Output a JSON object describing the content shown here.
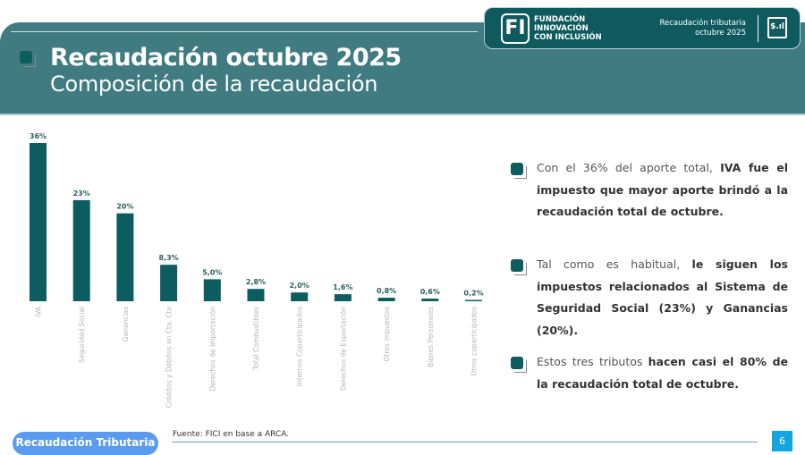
{
  "header": {
    "title": "Recaudación octubre 2025",
    "subtitle": "Composición de la recaudación"
  },
  "logo": {
    "mark": "FI",
    "org_lines": [
      "FUNDACIÓN",
      "INNOVACIÓN",
      "CON INCLUSIÓN"
    ],
    "report_lines": [
      "Recaudación tributaria",
      "octubre 2025"
    ],
    "icon": "presentation-chart-icon",
    "icon_text": "$.ıl"
  },
  "colors": {
    "header": "#3f7b80",
    "bar": "#0d5c5f",
    "footer_pill": "#5b9bef",
    "page_number": "#12a6e0"
  },
  "chart_data": {
    "type": "bar",
    "title": "",
    "xlabel": "",
    "ylabel": "",
    "ylim": [
      0,
      36
    ],
    "grid": false,
    "categories": [
      "IVA",
      "Seguridad Social",
      "Ganancias",
      "Créditos y Débitos en Cta. Cte",
      "Derechos de Importación",
      "Total Combustibles",
      "Internos Coparticipados",
      "Derechos de Exportación",
      "Otros impuestos",
      "Bienes Personales",
      "Otros coparticipados"
    ],
    "values": [
      36,
      23,
      20,
      8.3,
      5.0,
      2.8,
      2.0,
      1.6,
      0.8,
      0.6,
      0.2
    ],
    "data_labels": [
      "36%",
      "23%",
      "20%",
      "8,3%",
      "5,0%",
      "2,8%",
      "2,0%",
      "1,6%",
      "0,8%",
      "0,6%",
      "0,2%"
    ]
  },
  "bullets": [
    [
      {
        "t": "Con el 36% del aporte total, ",
        "b": false
      },
      {
        "t": "IVA fue el impuesto que mayor aporte brindó a la recaudación total de octubre.",
        "b": true
      }
    ],
    [
      {
        "t": "Tal como es habitual, ",
        "b": false
      },
      {
        "t": "le siguen los impuestos relacionados al Sistema de Seguridad Social (23%) y Ganancias (20%).",
        "b": true
      }
    ],
    [
      {
        "t": "Estos tres tributos ",
        "b": false
      },
      {
        "t": "hacen casi el 80% de la recaudación total de octubre.",
        "b": true
      }
    ]
  ],
  "footer": {
    "section": "Recaudación Tributaria",
    "source": "Fuente: FICI en base a ARCA.",
    "page": "6"
  }
}
